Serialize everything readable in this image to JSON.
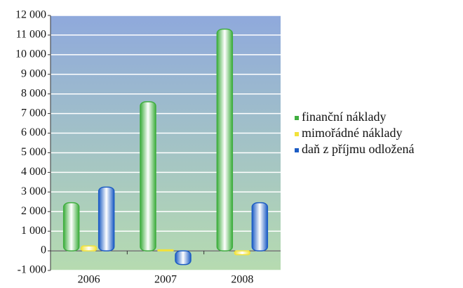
{
  "chart_data": {
    "type": "bar",
    "categories": [
      "2006",
      "2007",
      "2008"
    ],
    "series": [
      {
        "name": "finanční náklady",
        "color": "#3fae3f",
        "values": [
          2450,
          7600,
          11300
        ]
      },
      {
        "name": "mimořádné náklady",
        "color": "#f2e23a",
        "values": [
          250,
          50,
          -200
        ]
      },
      {
        "name": "daň z příjmu odložená",
        "color": "#1c5cc4",
        "values": [
          3250,
          -700,
          2450
        ]
      }
    ],
    "ylim": [
      -1000,
      12000
    ],
    "yticks": [
      {
        "value": -1000,
        "label": "-1 000"
      },
      0,
      {
        "value": 1000,
        "label": "1 000"
      },
      {
        "value": 2000,
        "label": "2 000"
      },
      {
        "value": 3000,
        "label": "3 000"
      },
      {
        "value": 4000,
        "label": "4 000"
      },
      {
        "value": 5000,
        "label": "5 000"
      },
      {
        "value": 6000,
        "label": "6 000"
      },
      {
        "value": 7000,
        "label": "7 000"
      },
      {
        "value": 8000,
        "label": "8 000"
      },
      {
        "value": 9000,
        "label": "9 000"
      },
      {
        "value": 10000,
        "label": "10 000"
      },
      {
        "value": 11000,
        "label": "11 000"
      },
      {
        "value": 12000,
        "label": "12 000"
      }
    ],
    "grid": true,
    "legend": "right"
  }
}
